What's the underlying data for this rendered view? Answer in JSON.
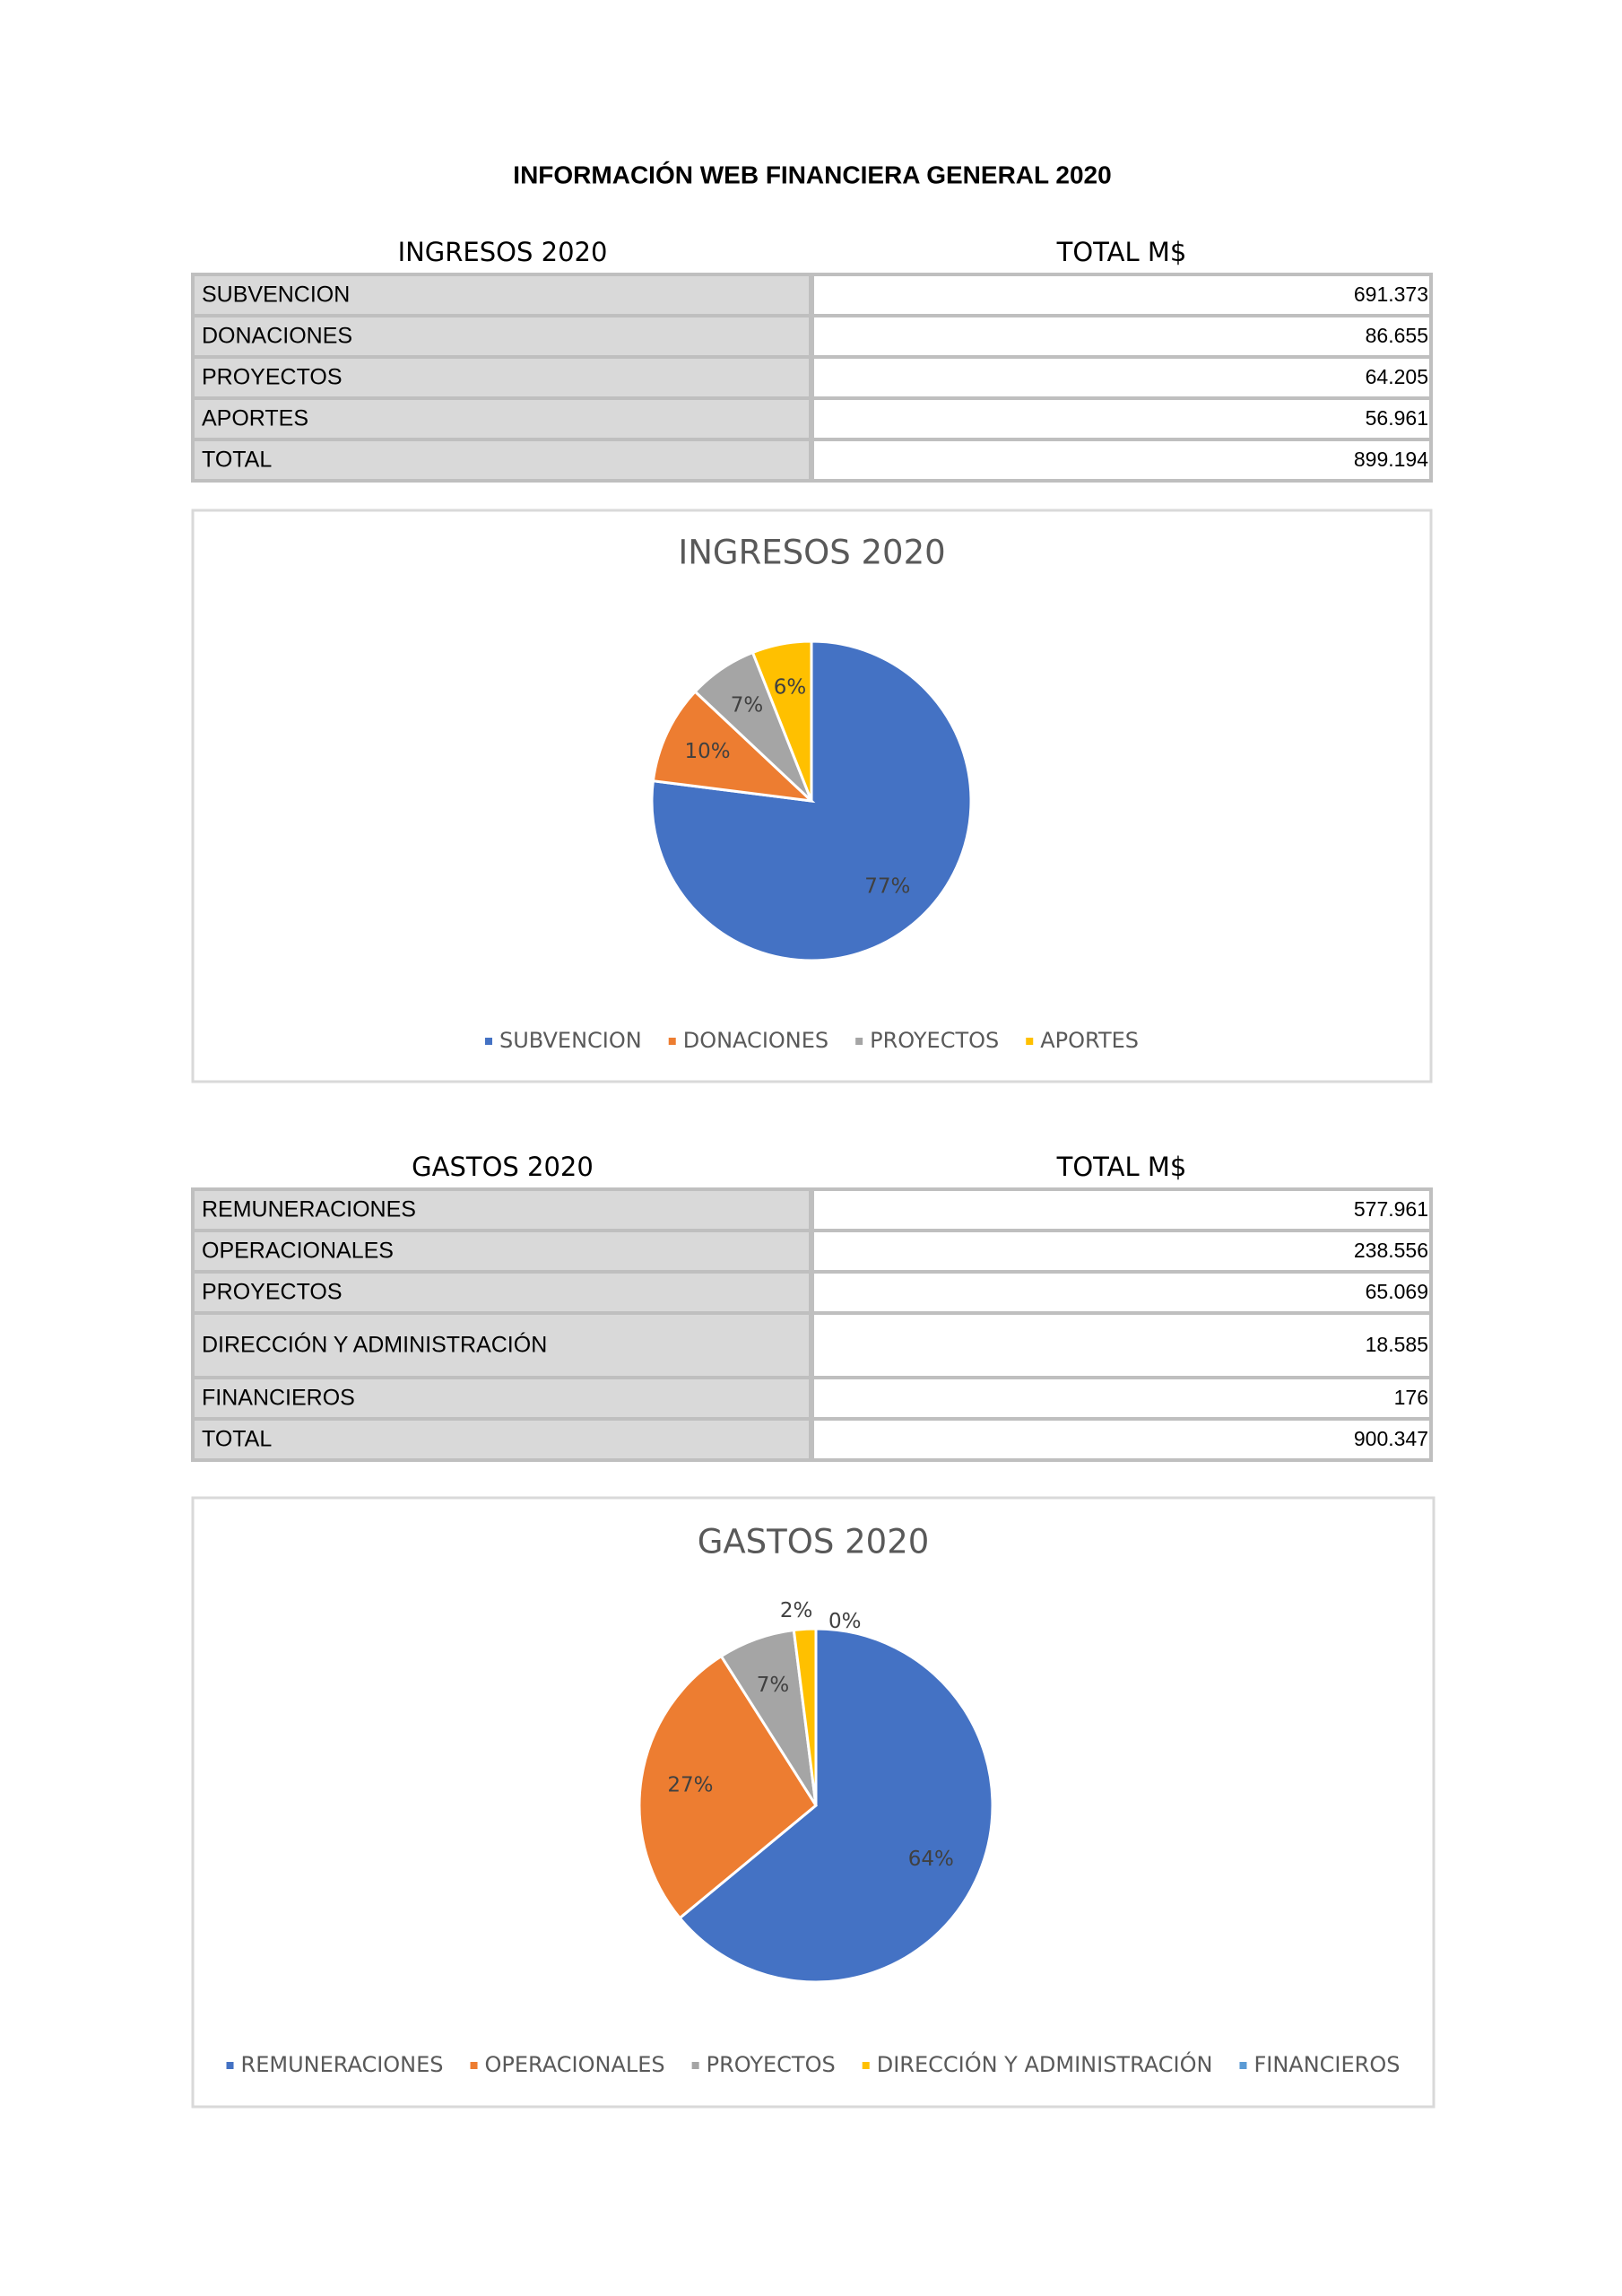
{
  "title": "INFORMACIÓN WEB FINANCIERA GENERAL 2020",
  "tables": [
    {
      "header": [
        "INGRESOS 2020",
        "TOTAL M$"
      ],
      "rows": [
        [
          "SUBVENCION",
          "691.373"
        ],
        [
          "DONACIONES",
          "86.655"
        ],
        [
          "PROYECTOS",
          "64.205"
        ],
        [
          "APORTES",
          "56.961"
        ],
        [
          "TOTAL",
          "899.194"
        ]
      ]
    },
    {
      "header": [
        "GASTOS 2020",
        "TOTAL M$"
      ],
      "rows": [
        [
          "REMUNERACIONES",
          "577.961"
        ],
        [
          "OPERACIONALES",
          "238.556"
        ],
        [
          "PROYECTOS",
          "65.069"
        ],
        [
          "DIRECCIÓN Y ADMINISTRACIÓN",
          "18.585"
        ],
        [
          "FINANCIEROS",
          "176"
        ],
        [
          "TOTAL",
          "900.347"
        ]
      ]
    }
  ],
  "chart_data": [
    {
      "type": "pie",
      "title": "INGRESOS 2020",
      "categories": [
        "SUBVENCION",
        "DONACIONES",
        "PROYECTOS",
        "APORTES"
      ],
      "values": [
        77,
        10,
        7,
        6
      ],
      "value_labels": [
        "77%",
        "10%",
        "7%",
        "6%"
      ],
      "colors": [
        "#4472c4",
        "#ed7d31",
        "#a5a5a5",
        "#ffc000"
      ],
      "legend": "bottom"
    },
    {
      "type": "pie",
      "title": "GASTOS 2020",
      "categories": [
        "REMUNERACIONES",
        "OPERACIONALES",
        "PROYECTOS",
        "DIRECCIÓN Y ADMINISTRACIÓN",
        "FINANCIEROS"
      ],
      "values": [
        64,
        27,
        7,
        2,
        0
      ],
      "value_labels": [
        "64%",
        "27%",
        "7%",
        "2%",
        "0%"
      ],
      "colors": [
        "#4472c4",
        "#ed7d31",
        "#a5a5a5",
        "#ffc000",
        "#5b9bd5"
      ],
      "legend": "bottom"
    }
  ]
}
